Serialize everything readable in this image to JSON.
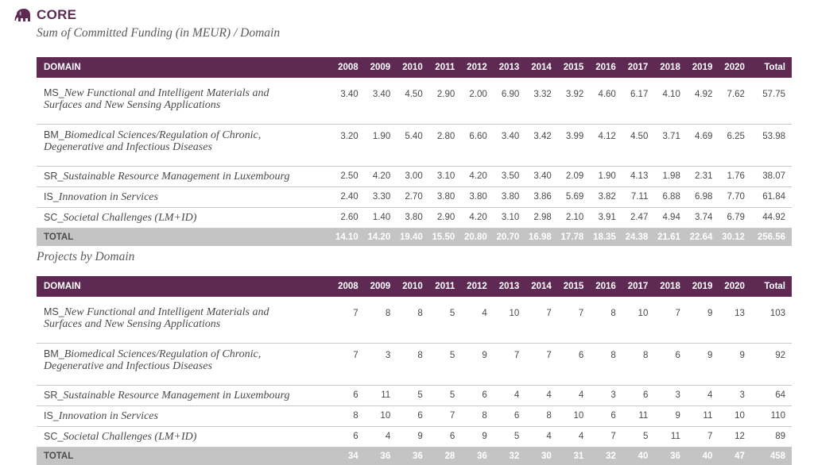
{
  "header": {
    "title": "CORE",
    "logo_icon": "elephant-icon"
  },
  "colors": {
    "accent": "#5e2a54",
    "total_bg": "#c4c4c4"
  },
  "funding": {
    "subtitle": "Sum of Committed Funding (in MEUR) / Domain",
    "columns": [
      "DOMAIN",
      "2008",
      "2009",
      "2010",
      "2011",
      "2012",
      "2013",
      "2014",
      "2015",
      "2016",
      "2017",
      "2018",
      "2019",
      "2020",
      "Total"
    ],
    "rows": [
      {
        "code": "MS_",
        "line1": "New Functional and Intelligent Materials and",
        "line2": "Surfaces and New Sensing Applications",
        "values": [
          "3.40",
          "3.40",
          "4.50",
          "2.90",
          "2.00",
          "6.90",
          "3.32",
          "3.92",
          "4.60",
          "6.17",
          "4.10",
          "4.92",
          "7.62",
          "57.75"
        ]
      },
      {
        "code": "BM_",
        "line1": "Biomedical Sciences/Regulation of Chronic,",
        "line2": "Degenerative and Infectious Diseases",
        "values": [
          "3.20",
          "1.90",
          "5.40",
          "2.80",
          "6.60",
          "3.40",
          "3.42",
          "3.99",
          "4.12",
          "4.50",
          "3.71",
          "4.69",
          "6.25",
          "53.98"
        ]
      },
      {
        "code": "SR_",
        "line1": "Sustainable Resource Management in Luxembourg",
        "line2": "",
        "values": [
          "2.50",
          "4.20",
          "3.00",
          "3.10",
          "4.20",
          "3.50",
          "3.40",
          "2.09",
          "1.90",
          "4.13",
          "1.98",
          "2.31",
          "1.76",
          "38.07"
        ]
      },
      {
        "code": "IS_",
        "line1": "Innovation in Services",
        "line2": "",
        "values": [
          "2.40",
          "3.30",
          "2.70",
          "3.80",
          "3.80",
          "3.80",
          "3.86",
          "5.69",
          "3.82",
          "7.11",
          "6.88",
          "6.98",
          "7.70",
          "61.84"
        ]
      },
      {
        "code": "SC_",
        "line1": "Societal Challenges (LM+ID)",
        "line2": "",
        "values": [
          "2.60",
          "1.40",
          "3.80",
          "2.90",
          "4.20",
          "3.10",
          "2.98",
          "2.10",
          "3.91",
          "2.47",
          "4.94",
          "3.74",
          "6.79",
          "44.92"
        ]
      }
    ],
    "total": {
      "label": "TOTAL",
      "values": [
        "14.10",
        "14.20",
        "19.40",
        "15.50",
        "20.80",
        "20.70",
        "16.98",
        "17.78",
        "18.35",
        "24.38",
        "21.61",
        "22.64",
        "30.12",
        "256.56"
      ]
    }
  },
  "projects": {
    "subtitle": "Projects by Domain",
    "columns": [
      "DOMAIN",
      "2008",
      "2009",
      "2010",
      "2011",
      "2012",
      "2013",
      "2014",
      "2015",
      "2016",
      "2017",
      "2018",
      "2019",
      "2020",
      "Total"
    ],
    "rows": [
      {
        "code": "MS_",
        "line1": "New Functional and Intelligent Materials and",
        "line2": "Surfaces and New Sensing Applications",
        "values": [
          "7",
          "8",
          "8",
          "5",
          "4",
          "10",
          "7",
          "7",
          "8",
          "10",
          "7",
          "9",
          "13",
          "103"
        ]
      },
      {
        "code": "BM_",
        "line1": "Biomedical Sciences/Regulation of Chronic,",
        "line2": "Degenerative and Infectious Diseases",
        "values": [
          "7",
          "3",
          "8",
          "5",
          "9",
          "7",
          "7",
          "6",
          "8",
          "8",
          "6",
          "9",
          "9",
          "92"
        ]
      },
      {
        "code": "SR_",
        "line1": "Sustainable Resource Management in Luxembourg",
        "line2": "",
        "values": [
          "6",
          "11",
          "5",
          "5",
          "6",
          "4",
          "4",
          "4",
          "3",
          "6",
          "3",
          "4",
          "3",
          "64"
        ]
      },
      {
        "code": "IS_",
        "line1": "Innovation in Services",
        "line2": "",
        "values": [
          "8",
          "10",
          "6",
          "7",
          "8",
          "6",
          "8",
          "10",
          "6",
          "11",
          "9",
          "11",
          "10",
          "110"
        ]
      },
      {
        "code": "SC_",
        "line1": "Societal Challenges (LM+ID)",
        "line2": "",
        "values": [
          "6",
          "4",
          "9",
          "6",
          "9",
          "5",
          "4",
          "4",
          "7",
          "5",
          "11",
          "7",
          "12",
          "89"
        ]
      }
    ],
    "total": {
      "label": "TOTAL",
      "values": [
        "34",
        "36",
        "36",
        "28",
        "36",
        "32",
        "30",
        "31",
        "32",
        "40",
        "36",
        "40",
        "47",
        "458"
      ]
    }
  }
}
